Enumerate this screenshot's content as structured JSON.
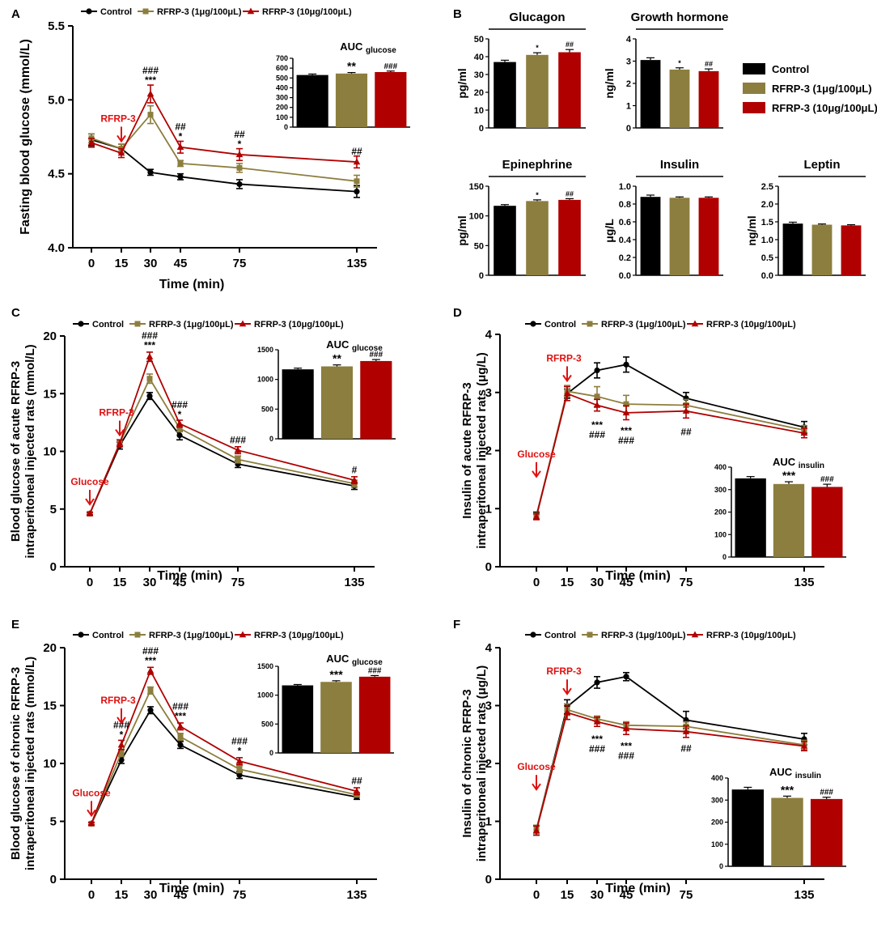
{
  "colors": {
    "control": "#000000",
    "low": "#8c7e3e",
    "high": "#b00000",
    "annot": "#e01010"
  },
  "legend_labels": [
    "Control",
    "RFRP-3 (1μg/100μL)",
    "RFRP-3 (10μg/100μL)"
  ],
  "chart_data": [
    {
      "id": "A",
      "type": "line",
      "ylabel": "Fasting blood glucose (mmol/L)",
      "xlabel": "Time (min)",
      "ylim": [
        4.0,
        5.5
      ],
      "yticks": [
        "4.0",
        "4.5",
        "5.0",
        "5.5"
      ],
      "x": [
        0,
        15,
        30,
        45,
        75,
        135
      ],
      "series": [
        {
          "name": "Control",
          "values": [
            4.73,
            4.67,
            4.51,
            4.48,
            4.43,
            4.38
          ],
          "err": [
            0.04,
            0.03,
            0.02,
            0.02,
            0.03,
            0.04
          ]
        },
        {
          "name": "RFRP-3 (1μg/100μL)",
          "values": [
            4.74,
            4.67,
            4.9,
            4.57,
            4.54,
            4.45
          ],
          "err": [
            0.03,
            0.03,
            0.06,
            0.02,
            0.03,
            0.04
          ]
        },
        {
          "name": "RFRP-3 (10μg/100μL)",
          "values": [
            4.71,
            4.64,
            5.04,
            4.68,
            4.63,
            4.58
          ],
          "err": [
            0.03,
            0.03,
            0.06,
            0.04,
            0.04,
            0.04
          ]
        }
      ],
      "marks": [
        {
          "x": 30,
          "lines": [
            "###",
            "***"
          ],
          "y": 5.11
        },
        {
          "x": 45,
          "lines": [
            "##",
            "*"
          ],
          "y": 4.73
        },
        {
          "x": 75,
          "lines": [
            "##",
            "*"
          ],
          "y": 4.68
        },
        {
          "x": 135,
          "lines": [
            "##"
          ],
          "y": 4.63
        }
      ],
      "arrows": [
        {
          "label": "RFRP-3",
          "x": 15,
          "y": 4.72
        }
      ],
      "inset": {
        "title": "AUC",
        "sub": "glucose",
        "yticks": [
          "0",
          "100",
          "200",
          "300",
          "400",
          "500",
          "600",
          "700"
        ],
        "ymax": 700,
        "values": [
          530,
          545,
          560
        ],
        "err": [
          10,
          10,
          10
        ],
        "labels": [
          "",
          "**",
          "###"
        ]
      }
    },
    {
      "id": "C",
      "type": "line",
      "ylabel": "Blood glucose of acute RFRP-3 | intraperitoneal injected rats (mmol/L)",
      "xlabel": "Time (min)",
      "ylim": [
        0,
        20
      ],
      "yticks": [
        "0",
        "5",
        "10",
        "15",
        "20"
      ],
      "x": [
        0,
        15,
        30,
        45,
        75,
        135
      ],
      "series": [
        {
          "name": "Control",
          "values": [
            4.6,
            10.5,
            14.8,
            11.4,
            8.9,
            7.0
          ],
          "err": [
            0.1,
            0.3,
            0.3,
            0.4,
            0.3,
            0.3
          ]
        },
        {
          "name": "RFRP-3 (1μg/100μL)",
          "values": [
            4.6,
            10.7,
            16.3,
            12.0,
            9.3,
            7.2
          ],
          "err": [
            0.1,
            0.3,
            0.4,
            0.3,
            0.3,
            0.3
          ]
        },
        {
          "name": "RFRP-3 (10μg/100μL)",
          "values": [
            4.6,
            10.7,
            18.2,
            12.4,
            10.1,
            7.5
          ],
          "err": [
            0.1,
            0.3,
            0.4,
            0.3,
            0.3,
            0.3
          ]
        }
      ],
      "marks": [
        {
          "x": 30,
          "lines": [
            "###",
            "***"
          ],
          "y": 18.9
        },
        {
          "x": 45,
          "lines": [
            "###",
            "*"
          ],
          "y": 12.9
        },
        {
          "x": 75,
          "lines": [
            "###"
          ],
          "y": 10.7
        },
        {
          "x": 135,
          "lines": [
            "#"
          ],
          "y": 8.1
        }
      ],
      "arrows": [
        {
          "label": "RFRP-3",
          "x": 15,
          "y": 11.4
        },
        {
          "label": "Glucose",
          "x": 0,
          "y": 5.4
        }
      ],
      "inset": {
        "title": "AUC",
        "sub": "glucose",
        "yticks": [
          "0",
          "500",
          "1000",
          "1500"
        ],
        "ymax": 1500,
        "values": [
          1170,
          1220,
          1310
        ],
        "err": [
          20,
          25,
          25
        ],
        "labels": [
          "",
          "**",
          "###"
        ]
      }
    },
    {
      "id": "D",
      "type": "line",
      "ylabel": "Insulin of acute RFRP-3 | intraperitoneal injected rats (μg/L)",
      "xlabel": "Time (min)",
      "ylim": [
        0,
        4
      ],
      "yticks": [
        "0",
        "1",
        "2",
        "3",
        "4"
      ],
      "x": [
        0,
        15,
        30,
        45,
        75,
        135
      ],
      "series": [
        {
          "name": "Control",
          "values": [
            0.88,
            2.98,
            3.38,
            3.48,
            2.9,
            2.4
          ],
          "err": [
            0.06,
            0.08,
            0.13,
            0.13,
            0.1,
            0.1
          ]
        },
        {
          "name": "RFRP-3 (1μg/100μL)",
          "values": [
            0.87,
            3.02,
            2.93,
            2.8,
            2.78,
            2.35
          ],
          "err": [
            0.05,
            0.1,
            0.17,
            0.15,
            0.1,
            0.08
          ]
        },
        {
          "name": "RFRP-3 (10μg/100μL)",
          "values": [
            0.86,
            2.98,
            2.78,
            2.65,
            2.68,
            2.3
          ],
          "err": [
            0.05,
            0.12,
            0.1,
            0.12,
            0.12,
            0.08
          ]
        }
      ],
      "marks": [
        {
          "x": 30,
          "lines": [
            "***",
            "###"
          ],
          "y": 2.58,
          "below": true
        },
        {
          "x": 45,
          "lines": [
            "***",
            "###"
          ],
          "y": 2.48,
          "below": true
        },
        {
          "x": 75,
          "lines": [
            "##"
          ],
          "y": 2.46,
          "below": true
        }
      ],
      "arrows": [
        {
          "label": "RFRP-3",
          "x": 15,
          "y": 3.2
        },
        {
          "label": "Glucose",
          "x": 0,
          "y": 1.55
        }
      ],
      "inset": {
        "title": "AUC",
        "sub": "insulin",
        "yticks": [
          "0",
          "100",
          "200",
          "300",
          "400"
        ],
        "ymax": 400,
        "values": [
          350,
          325,
          312
        ],
        "err": [
          8,
          10,
          12
        ],
        "labels": [
          "",
          "***",
          "###"
        ]
      }
    },
    {
      "id": "E",
      "type": "line",
      "ylabel": "Blood glucose of chronic RFRP-3 | intraperitoneal injected rats (mmol/L)",
      "xlabel": "Time (min)",
      "ylim": [
        0,
        20
      ],
      "yticks": [
        "0",
        "5",
        "10",
        "15",
        "20"
      ],
      "x": [
        0,
        15,
        30,
        45,
        75,
        135
      ],
      "series": [
        {
          "name": "Control",
          "values": [
            4.8,
            10.3,
            14.6,
            11.6,
            9.0,
            7.1
          ],
          "err": [
            0.1,
            0.3,
            0.3,
            0.3,
            0.3,
            0.2
          ]
        },
        {
          "name": "RFRP-3 (1μg/100μL)",
          "values": [
            4.8,
            10.9,
            16.3,
            12.3,
            9.5,
            7.3
          ],
          "err": [
            0.1,
            0.3,
            0.3,
            0.3,
            0.3,
            0.2
          ]
        },
        {
          "name": "RFRP-3 (10μg/100μL)",
          "values": [
            4.8,
            11.6,
            18.0,
            13.2,
            10.2,
            7.6
          ],
          "err": [
            0.1,
            0.4,
            0.3,
            0.3,
            0.3,
            0.3
          ]
        }
      ],
      "marks": [
        {
          "x": 15,
          "lines": [
            "###",
            "*"
          ],
          "y": 12.2
        },
        {
          "x": 30,
          "lines": [
            "###",
            "***"
          ],
          "y": 18.6
        },
        {
          "x": 45,
          "lines": [
            "###",
            "***"
          ],
          "y": 13.8
        },
        {
          "x": 75,
          "lines": [
            "###",
            "*"
          ],
          "y": 10.8
        },
        {
          "x": 135,
          "lines": [
            "##"
          ],
          "y": 8.2
        }
      ],
      "arrows": [
        {
          "label": "RFRP-3",
          "x": 15,
          "y": 13.5
        },
        {
          "label": "Glucose",
          "x": 0,
          "y": 5.5
        }
      ],
      "inset": {
        "title": "AUC",
        "sub": "glucose",
        "yticks": [
          "0",
          "500",
          "1000",
          "1500"
        ],
        "ymax": 1500,
        "values": [
          1170,
          1230,
          1320
        ],
        "err": [
          15,
          20,
          20
        ],
        "labels": [
          "",
          "***",
          "###"
        ]
      }
    },
    {
      "id": "F",
      "type": "line",
      "ylabel": "Insulin of chronic RFRP-3 | intraperitoneal injected rats (μg/L)",
      "xlabel": "Time (min)",
      "ylim": [
        0,
        4
      ],
      "yticks": [
        "0",
        "1",
        "2",
        "3",
        "4"
      ],
      "x": [
        0,
        15,
        30,
        45,
        75,
        135
      ],
      "series": [
        {
          "name": "Control",
          "values": [
            0.86,
            2.98,
            3.4,
            3.5,
            2.75,
            2.42
          ],
          "err": [
            0.07,
            0.12,
            0.1,
            0.07,
            0.15,
            0.1
          ]
        },
        {
          "name": "RFRP-3 (1μg/100μL)",
          "values": [
            0.86,
            2.93,
            2.77,
            2.66,
            2.64,
            2.32
          ],
          "err": [
            0.07,
            0.1,
            0.05,
            0.06,
            0.08,
            0.08
          ]
        },
        {
          "name": "RFRP-3 (10μg/100μL)",
          "values": [
            0.84,
            2.88,
            2.72,
            2.6,
            2.55,
            2.3
          ],
          "err": [
            0.08,
            0.12,
            0.08,
            0.1,
            0.1,
            0.08
          ]
        }
      ],
      "marks": [
        {
          "x": 30,
          "lines": [
            "***",
            "###"
          ],
          "y": 2.56,
          "below": true
        },
        {
          "x": 45,
          "lines": [
            "***",
            "###"
          ],
          "y": 2.44,
          "below": true
        },
        {
          "x": 75,
          "lines": [
            "##"
          ],
          "y": 2.4,
          "below": true
        }
      ],
      "arrows": [
        {
          "label": "RFRP-3",
          "x": 15,
          "y": 3.2
        },
        {
          "label": "Glucose",
          "x": 0,
          "y": 1.55
        }
      ],
      "inset": {
        "title": "AUC",
        "sub": "insulin",
        "yticks": [
          "0",
          "100",
          "200",
          "300",
          "400"
        ],
        "ymax": 400,
        "values": [
          348,
          310,
          305
        ],
        "err": [
          10,
          8,
          8
        ],
        "labels": [
          "",
          "***",
          "###"
        ]
      }
    },
    {
      "id": "B",
      "type": "bar",
      "legend": [
        "Control",
        "RFRP-3 (1μg/100μL)",
        "RFRP-3 (10μg/100μL)"
      ],
      "panels": [
        {
          "title": "Glucagon",
          "ylabel": "pg/ml",
          "yticks": [
            "0",
            "10",
            "20",
            "30",
            "40",
            "50"
          ],
          "ymax": 50,
          "values": [
            37,
            41,
            42.5
          ],
          "err": [
            1,
            1.2,
            1.5
          ],
          "labels": [
            "",
            "*",
            "##"
          ]
        },
        {
          "title": "Growth hormone",
          "ylabel": "ng/ml",
          "yticks": [
            "0",
            "1",
            "2",
            "3",
            "4"
          ],
          "ymax": 4,
          "values": [
            3.05,
            2.62,
            2.55
          ],
          "err": [
            0.1,
            0.08,
            0.1
          ],
          "labels": [
            "",
            "*",
            "##"
          ]
        },
        {
          "title": "Epinephrine",
          "ylabel": "pg/ml",
          "yticks": [
            "0",
            "50",
            "100",
            "150"
          ],
          "ymax": 150,
          "values": [
            117,
            125,
            127
          ],
          "err": [
            2,
            2,
            2
          ],
          "labels": [
            "",
            "*",
            "##"
          ]
        },
        {
          "title": "Insulin",
          "ylabel": "μg/L",
          "yticks": [
            "0.0",
            "0.2",
            "0.4",
            "0.6",
            "0.8",
            "1.0"
          ],
          "ymax": 1.0,
          "values": [
            0.88,
            0.87,
            0.87
          ],
          "err": [
            0.02,
            0.01,
            0.01
          ],
          "labels": [
            "",
            "",
            ""
          ]
        },
        {
          "title": "Leptin",
          "ylabel": "ng/ml",
          "yticks": [
            "0.0",
            "0.5",
            "1.0",
            "1.5",
            "2.0",
            "2.5"
          ],
          "ymax": 2.5,
          "values": [
            1.45,
            1.42,
            1.4
          ],
          "err": [
            0.04,
            0.02,
            0.02
          ],
          "labels": [
            "",
            "",
            ""
          ]
        }
      ]
    }
  ]
}
